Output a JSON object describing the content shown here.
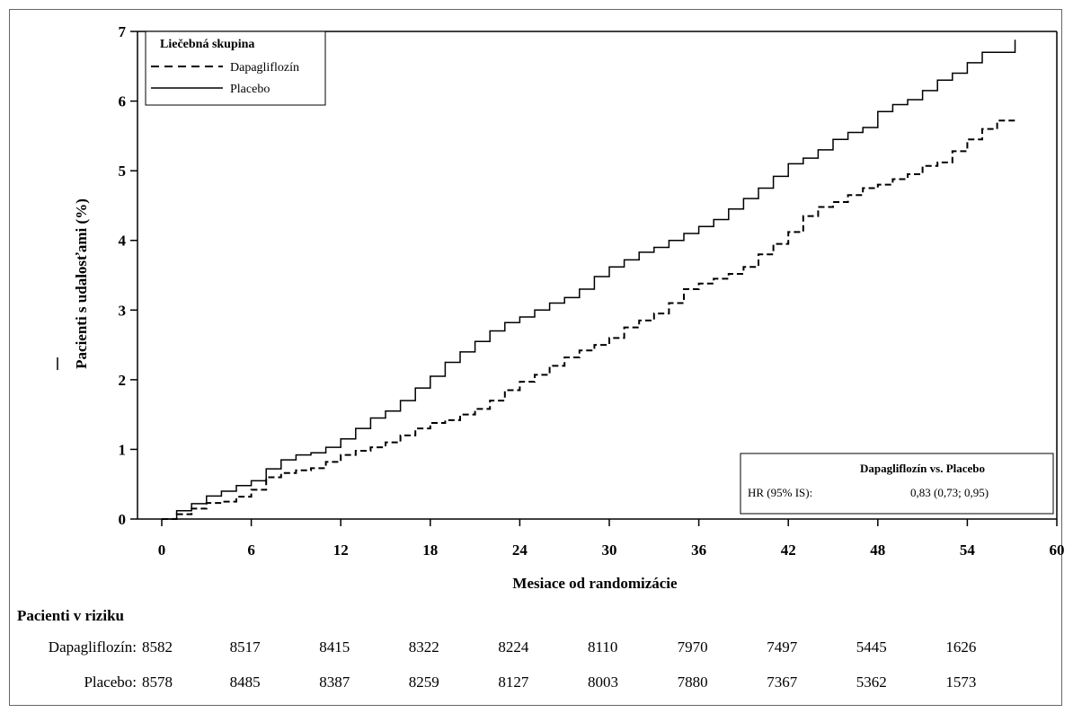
{
  "chart_data": {
    "type": "line",
    "title": "",
    "xlabel": "Mesiace od randomizácie",
    "ylabel": "Pacienti s udalosťami (%)",
    "xlim": [
      0,
      60
    ],
    "ylim": [
      0,
      7
    ],
    "x_ticks": [
      "0",
      "6",
      "12",
      "18",
      "24",
      "30",
      "36",
      "42",
      "48",
      "54",
      "60"
    ],
    "y_ticks": [
      "0",
      "1",
      "2",
      "3",
      "4",
      "5",
      "6",
      "7"
    ],
    "legend": {
      "title": "Liečebná skupina",
      "position": "top-left"
    },
    "series": [
      {
        "name": "Dapagliflozín",
        "line_style": "dashed",
        "x": [
          0,
          1,
          2,
          3,
          4,
          5,
          6,
          7,
          8,
          9,
          10,
          11,
          12,
          13,
          14,
          15,
          16,
          17,
          18,
          19,
          20,
          21,
          22,
          23,
          24,
          25,
          26,
          27,
          28,
          29,
          30,
          31,
          32,
          33,
          34,
          35,
          36,
          37,
          38,
          39,
          40,
          41,
          42,
          43,
          44,
          45,
          46,
          47,
          48,
          49,
          50,
          51,
          52,
          53,
          54,
          55,
          56,
          57.2
        ],
        "y": [
          0,
          0.07,
          0.15,
          0.23,
          0.25,
          0.32,
          0.42,
          0.6,
          0.66,
          0.7,
          0.73,
          0.82,
          0.92,
          0.98,
          1.03,
          1.1,
          1.2,
          1.3,
          1.38,
          1.42,
          1.5,
          1.58,
          1.7,
          1.85,
          1.97,
          2.07,
          2.2,
          2.32,
          2.42,
          2.5,
          2.6,
          2.75,
          2.85,
          2.95,
          3.1,
          3.3,
          3.38,
          3.45,
          3.52,
          3.62,
          3.8,
          3.95,
          4.12,
          4.35,
          4.48,
          4.55,
          4.65,
          4.75,
          4.8,
          4.88,
          4.95,
          5.07,
          5.12,
          5.28,
          5.45,
          5.6,
          5.72,
          5.72
        ]
      },
      {
        "name": "Placebo",
        "line_style": "solid",
        "x": [
          0,
          1,
          2,
          3,
          4,
          5,
          6,
          7,
          8,
          9,
          10,
          11,
          12,
          13,
          14,
          15,
          16,
          17,
          18,
          19,
          20,
          21,
          22,
          23,
          24,
          25,
          26,
          27,
          28,
          29,
          30,
          31,
          32,
          33,
          34,
          35,
          36,
          37,
          38,
          39,
          40,
          41,
          42,
          43,
          44,
          45,
          46,
          47,
          48,
          49,
          50,
          51,
          52,
          53,
          54,
          55,
          56,
          57,
          57.2
        ],
        "y": [
          0,
          0.12,
          0.22,
          0.33,
          0.4,
          0.48,
          0.55,
          0.72,
          0.85,
          0.92,
          0.95,
          1.03,
          1.15,
          1.3,
          1.45,
          1.55,
          1.7,
          1.88,
          2.05,
          2.25,
          2.4,
          2.55,
          2.7,
          2.82,
          2.9,
          3.0,
          3.1,
          3.18,
          3.3,
          3.48,
          3.62,
          3.72,
          3.83,
          3.9,
          4.0,
          4.1,
          4.2,
          4.3,
          4.45,
          4.6,
          4.75,
          4.92,
          5.1,
          5.18,
          5.3,
          5.45,
          5.55,
          5.62,
          5.85,
          5.95,
          6.02,
          6.15,
          6.3,
          6.4,
          6.55,
          6.7,
          6.7,
          6.7,
          6.88
        ]
      }
    ],
    "hr_box": {
      "heading": "Dapagliflozín vs. Placebo",
      "label": "HR (95% IS):",
      "value": "0,83 (0,73; 0,95)",
      "position": "bottom-right"
    },
    "risk_table": {
      "title": "Pacienti v riziku",
      "rows": [
        {
          "label": "Dapagliflozín:",
          "values": [
            "8582",
            "8517",
            "8415",
            "8322",
            "8224",
            "8110",
            "7970",
            "7497",
            "5445",
            "1626"
          ]
        },
        {
          "label": "Placebo:",
          "values": [
            "8578",
            "8485",
            "8387",
            "8259",
            "8127",
            "8003",
            "7880",
            "7367",
            "5362",
            "1573"
          ]
        }
      ]
    }
  }
}
